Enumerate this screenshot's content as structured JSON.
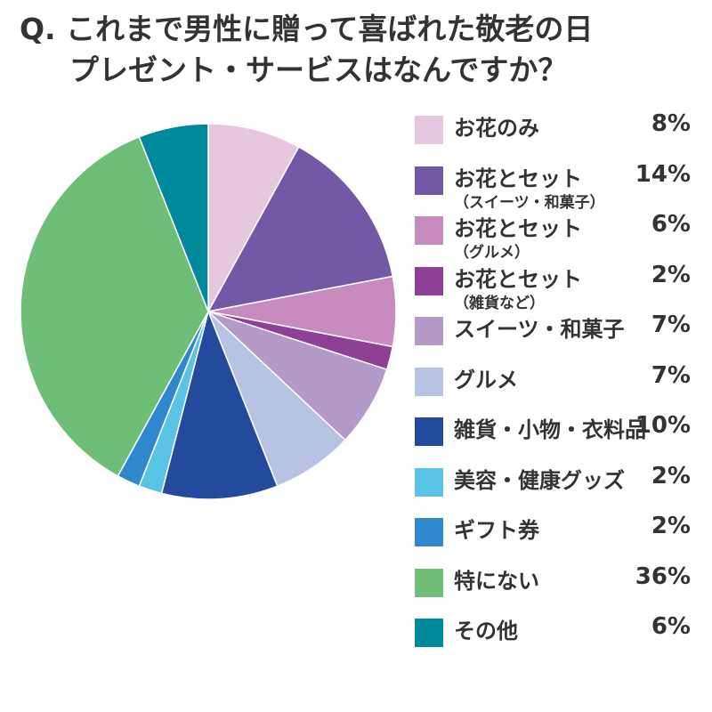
{
  "chart_data": {
    "type": "pie",
    "title_lines": [
      "Q. これまで男性に贈って喜ばれた敬老の日",
      "プレゼント・サービスはなんですか？"
    ],
    "slices": [
      {
        "label": "お花のみ",
        "sub": "",
        "value": 8,
        "display": "8%",
        "color": "#e7c6e0"
      },
      {
        "label": "お花とセット",
        "sub": "（スイーツ・和菓子）",
        "value": 14,
        "display": "14%",
        "color": "#7358a5"
      },
      {
        "label": "お花とセット",
        "sub": "（グルメ）",
        "value": 6,
        "display": "6%",
        "color": "#c88bbf"
      },
      {
        "label": "お花とセット",
        "sub": "（雑貨など）",
        "value": 2,
        "display": "2%",
        "color": "#8e3f96"
      },
      {
        "label": "スイーツ・和菓子",
        "sub": "",
        "value": 7,
        "display": "7%",
        "color": "#b39ac8"
      },
      {
        "label": "グルメ",
        "sub": "",
        "value": 7,
        "display": "7%",
        "color": "#b8c2e3"
      },
      {
        "label": "雑貨・小物・衣料品",
        "sub": "",
        "value": 10,
        "display": "10%",
        "color": "#234a9c"
      },
      {
        "label": "美容・健康グッズ",
        "sub": "",
        "value": 2,
        "display": "2%",
        "color": "#5bc3e8"
      },
      {
        "label": "ギフト券",
        "sub": "",
        "value": 2,
        "display": "2%",
        "color": "#2f87cc"
      },
      {
        "label": "特にない",
        "sub": "",
        "value": 36,
        "display": "36%",
        "color": "#6fbe78"
      },
      {
        "label": "その他",
        "sub": "",
        "value": 6,
        "display": "6%",
        "color": "#00899a"
      }
    ],
    "legend_position": "right"
  }
}
